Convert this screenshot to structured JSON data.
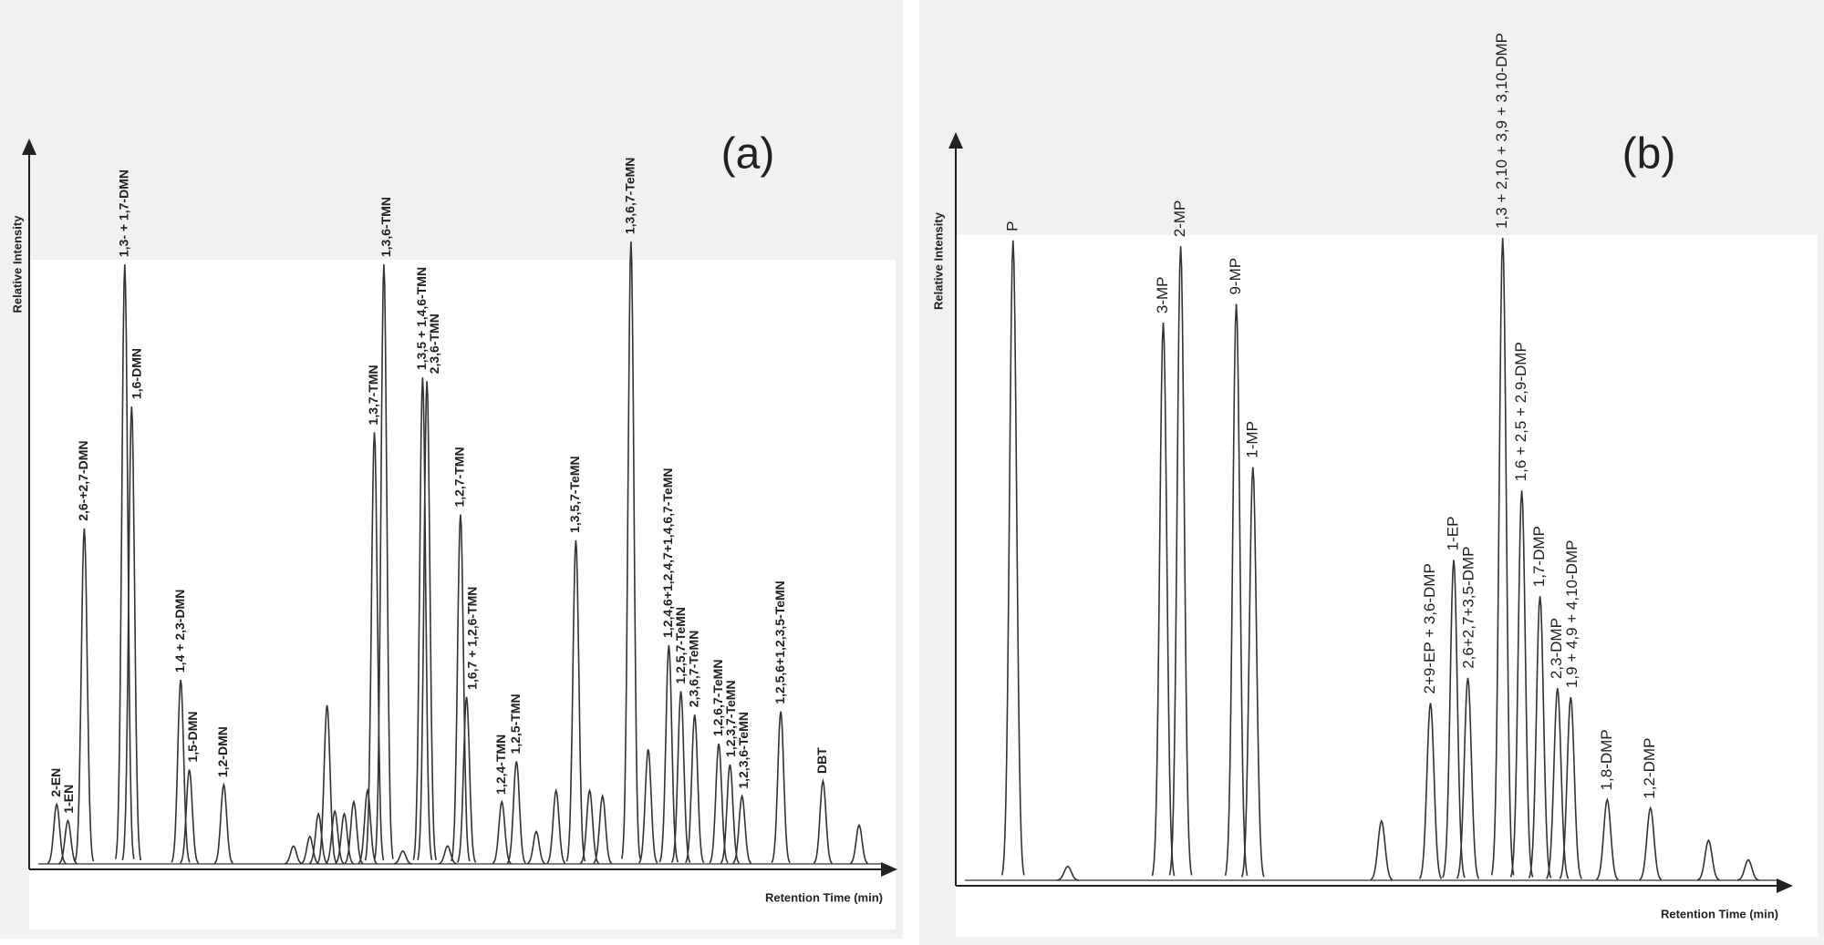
{
  "chart_data": [
    {
      "type": "chromatogram",
      "title": "(a)",
      "y_label": "Relative Intensity",
      "x_label": "Retention Time (min)",
      "xlim": [
        0,
        100
      ],
      "ylim": [
        0,
        100
      ],
      "color": "#333333",
      "x": [
        3.2,
        4.5,
        6.4,
        11.1,
        11.9,
        17.6,
        18.6,
        22.6,
        30.7,
        32.6,
        33.6,
        34.6,
        35.5,
        36.6,
        37.7,
        39.3,
        40.1,
        41.2,
        43.4,
        45.7,
        46.2,
        48.6,
        50.1,
        50.8,
        54.9,
        56.6,
        58.9,
        61.2,
        63.5,
        65.1,
        66.6,
        69.9,
        71.9,
        74.3,
        75.7,
        77.3,
        80.1,
        81.4,
        82.8,
        87.3,
        92.2,
        96.4
      ],
      "values": [
        10.3,
        7.7,
        54,
        95.8,
        73.3,
        30,
        15.8,
        13.4,
        3.7,
        5.2,
        8.8,
        26,
        9.2,
        8.8,
        10.7,
        12.5,
        69.2,
        95.8,
        2.9,
        77.9,
        77.3,
        3.7,
        56.2,
        27.3,
        10.7,
        17.1,
        6,
        12.5,
        52.1,
        12.5,
        11.6,
        99.4,
        19,
        35.5,
        28.2,
        24.5,
        19.9,
        16.6,
        11.6,
        25,
        14,
        7
      ],
      "peak_labels": [
        "2-EN",
        "1-EN",
        "2,6-+2,7-DMN",
        "1,3- + 1,7-DMN",
        "1,6-DMN",
        "1,4 + 2,3-DMN",
        "1,5-DMN",
        "1,2-DMN",
        null,
        null,
        null,
        null,
        null,
        null,
        null,
        null,
        "1,3,7-TMN",
        "1,3,6-TMN",
        null,
        "1,3,5 + 1,4,6-TMN",
        "2,3,6-TMN",
        null,
        "1,2,7-TMN",
        "1,6,7 + 1,2,6-TMN",
        "1,2,4-TMN",
        "1,2,5-TMN",
        null,
        null,
        "1,3,5,7-TeMN",
        null,
        null,
        "1,3,6,7-TeMN",
        null,
        "1,2,4,6+1,2,4,7+1,4,6,7-TeMN",
        "1,2,5,7-TeMN",
        "2,3,6,7-TeMN",
        "1,2,6,7-TeMN",
        "1,2,3,7-TeMN",
        "1,2,3,6-TeMN",
        "1,2,5,6+1,2,3,5-TeMN",
        "DBT",
        null
      ]
    },
    {
      "type": "chromatogram",
      "title": "(b)",
      "y_label": "Relative Intensity",
      "x_label": "Retention Time (min)",
      "xlim": [
        0,
        100
      ],
      "ylim": [
        0,
        100
      ],
      "color": "#333333",
      "x": [
        6.9,
        13.5,
        25,
        27.1,
        33.8,
        35.8,
        51.3,
        57.2,
        60,
        61.7,
        65.9,
        68.2,
        70.4,
        72.5,
        74.1,
        78.5,
        83.7,
        90.7,
        95.5
      ],
      "values": [
        99.6,
        3,
        86.9,
        98.7,
        89.8,
        64.6,
        10,
        28.2,
        50.3,
        32.1,
        100,
        61,
        44.7,
        30.5,
        29.1,
        13.3,
        12,
        7,
        4
      ],
      "peak_labels": [
        "P",
        null,
        "3-MP",
        "2-MP",
        "9-MP",
        "1-MP",
        null,
        "2+9-EP + 3,6-DMP",
        "1-EP",
        "2,6+2,7+3,5-DMP",
        "1,3 + 2,10 + 3,9 + 3,10-DMP",
        "1,6 + 2,5 + 2,9-DMP",
        "1,7-DMP",
        "2,3-DMP",
        "1,9 + 4,9 + 4,10-DMP",
        "1,8-DMP",
        "1,2-DMP",
        null,
        null
      ]
    }
  ]
}
